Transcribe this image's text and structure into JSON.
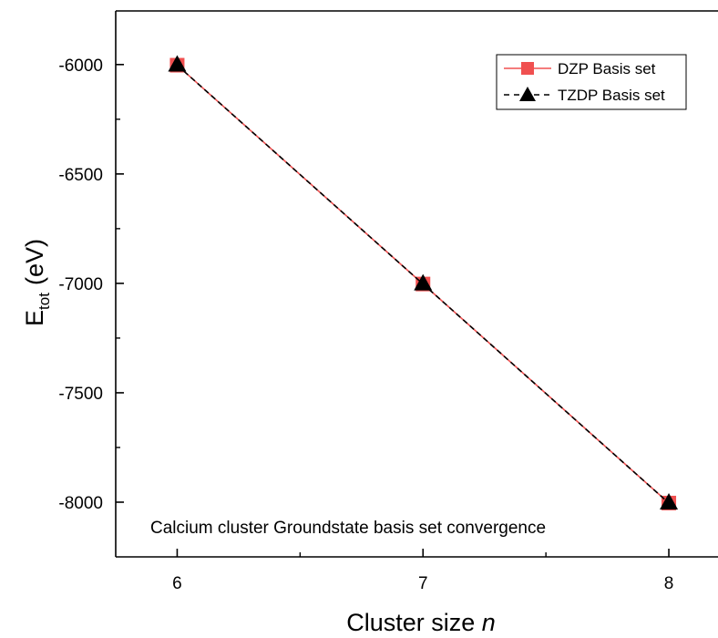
{
  "chart_data": {
    "type": "line",
    "title": "",
    "xlabel": "Cluster size",
    "xlabel_italic": "n",
    "ylabel": "E",
    "ylabel_sub": "tot",
    "ylabel_unit": "(eV)",
    "x": [
      6,
      7,
      8
    ],
    "xlim": [
      5.75,
      8.2
    ],
    "ylim": [
      -8250,
      -5755
    ],
    "x_ticks": [
      6,
      7,
      8
    ],
    "x_tick_labels": [
      "6",
      "7",
      "8"
    ],
    "x_minor_ticks": [
      6.5,
      7.5
    ],
    "y_ticks": [
      -6000,
      -6500,
      -7000,
      -7500,
      -8000
    ],
    "y_tick_labels": [
      "-6000",
      "-6500",
      "-7000",
      "-7500",
      "-8000"
    ],
    "y_minor_ticks": [
      -6250,
      -6750,
      -7250,
      -7750
    ],
    "grid": false,
    "legend_position": "top-right",
    "annotation": "Calcium cluster Groundstate basis set convergence",
    "series": [
      {
        "name": "DZP Basis set",
        "values": [
          -6003,
          -7003,
          -8004
        ],
        "color": "#f05050",
        "marker": "square",
        "line": "solid"
      },
      {
        "name": "TZDP Basis set",
        "values": [
          -6003,
          -7003,
          -8004
        ],
        "color": "#000000",
        "marker": "triangle",
        "line": "dashed"
      }
    ]
  }
}
